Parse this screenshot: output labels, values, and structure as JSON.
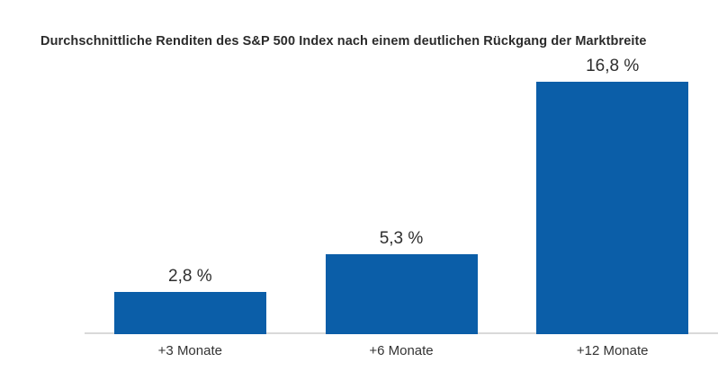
{
  "chart_data": {
    "type": "bar",
    "title": "Durchschnittliche Renditen des S&P 500 Index nach einem deutlichen Rückgang der Marktbreite",
    "categories": [
      "+3 Monate",
      "+6 Monate",
      "+12 Monate"
    ],
    "values": [
      2.8,
      5.3,
      16.8
    ],
    "value_labels": [
      "2,8 %",
      "5,3 %",
      "16,8 %"
    ],
    "xlabel": "",
    "ylabel": "",
    "ylim": [
      0,
      16.8
    ],
    "grid": false,
    "legend": false,
    "bar_color": "#0B5EA8",
    "axis_line_color": "#D9D9D9",
    "text_color": "#2B2B2B"
  }
}
